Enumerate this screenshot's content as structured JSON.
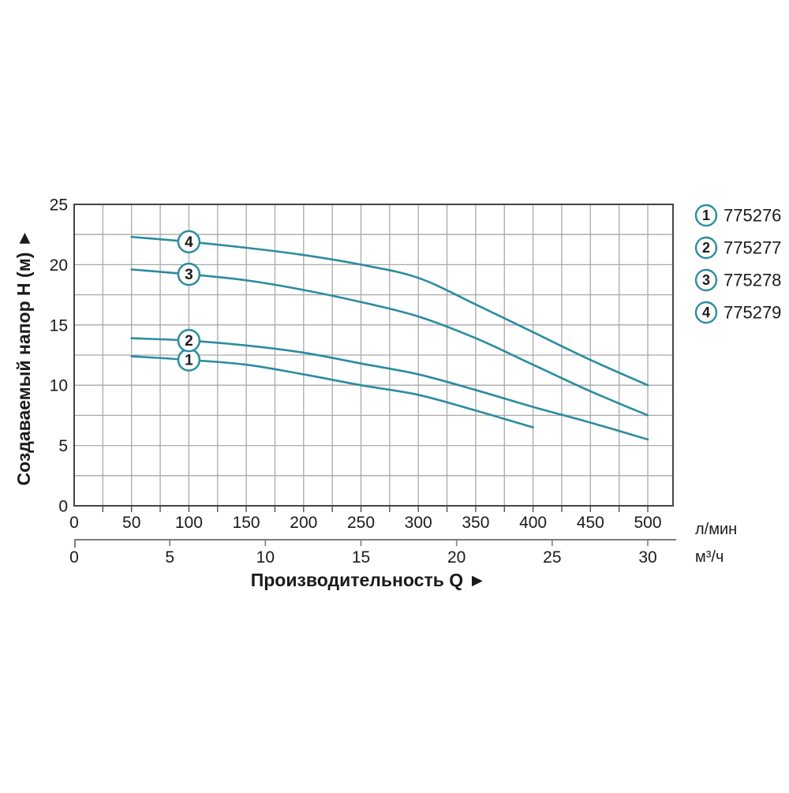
{
  "chart_data": {
    "type": "line",
    "title": "",
    "xlabel": "Производительность Q ►",
    "ylabel": "Создаваемый напор H (м) ►",
    "grid": true,
    "legend_position": "right-outside",
    "x_primary": {
      "unit": "л/мин",
      "min": 0,
      "max": 522,
      "grid_step": 25,
      "ticks": [
        0,
        50,
        100,
        150,
        200,
        250,
        300,
        350,
        400,
        450,
        500
      ]
    },
    "x_secondary": {
      "unit": "м³/ч",
      "min": 0,
      "ticks": [
        0,
        5,
        10,
        15,
        20,
        25,
        30
      ],
      "lmin_per_unit": 16.6667
    },
    "y_axis": {
      "min": 0,
      "max": 25,
      "grid_step": 2.5,
      "ticks": [
        0,
        5,
        10,
        15,
        20,
        25
      ]
    },
    "marker_at_q": 100,
    "series": [
      {
        "num": "1",
        "article": "775276",
        "points_q_lmin_h_m": [
          [
            50,
            12.4
          ],
          [
            100,
            12.1
          ],
          [
            150,
            11.7
          ],
          [
            200,
            10.9
          ],
          [
            250,
            10.0
          ],
          [
            300,
            9.2
          ],
          [
            350,
            7.9
          ],
          [
            400,
            6.5
          ]
        ]
      },
      {
        "num": "2",
        "article": "775277",
        "points_q_lmin_h_m": [
          [
            50,
            13.9
          ],
          [
            100,
            13.7
          ],
          [
            150,
            13.3
          ],
          [
            200,
            12.7
          ],
          [
            250,
            11.8
          ],
          [
            300,
            10.9
          ],
          [
            350,
            9.6
          ],
          [
            400,
            8.2
          ],
          [
            450,
            6.9
          ],
          [
            500,
            5.5
          ]
        ]
      },
      {
        "num": "3",
        "article": "775278",
        "points_q_lmin_h_m": [
          [
            50,
            19.6
          ],
          [
            100,
            19.2
          ],
          [
            150,
            18.7
          ],
          [
            200,
            17.9
          ],
          [
            250,
            16.9
          ],
          [
            300,
            15.7
          ],
          [
            350,
            13.9
          ],
          [
            400,
            11.7
          ],
          [
            450,
            9.5
          ],
          [
            500,
            7.5
          ]
        ]
      },
      {
        "num": "4",
        "article": "775279",
        "points_q_lmin_h_m": [
          [
            50,
            22.3
          ],
          [
            100,
            21.9
          ],
          [
            150,
            21.4
          ],
          [
            200,
            20.8
          ],
          [
            250,
            20.0
          ],
          [
            300,
            18.9
          ],
          [
            350,
            16.7
          ],
          [
            400,
            14.4
          ],
          [
            450,
            12.1
          ],
          [
            500,
            10.0
          ]
        ]
      }
    ],
    "colors": {
      "curve": "#2b8c9e",
      "grid": "#a9a9a9",
      "frame": "#454545",
      "axis2": "#7d7d7d",
      "text": "#1a1a1a",
      "marker_fill": "#ffffff"
    }
  },
  "legend": {
    "items": [
      {
        "num": "1",
        "label": "775276"
      },
      {
        "num": "2",
        "label": "775277"
      },
      {
        "num": "3",
        "label": "775278"
      },
      {
        "num": "4",
        "label": "775279"
      }
    ]
  }
}
